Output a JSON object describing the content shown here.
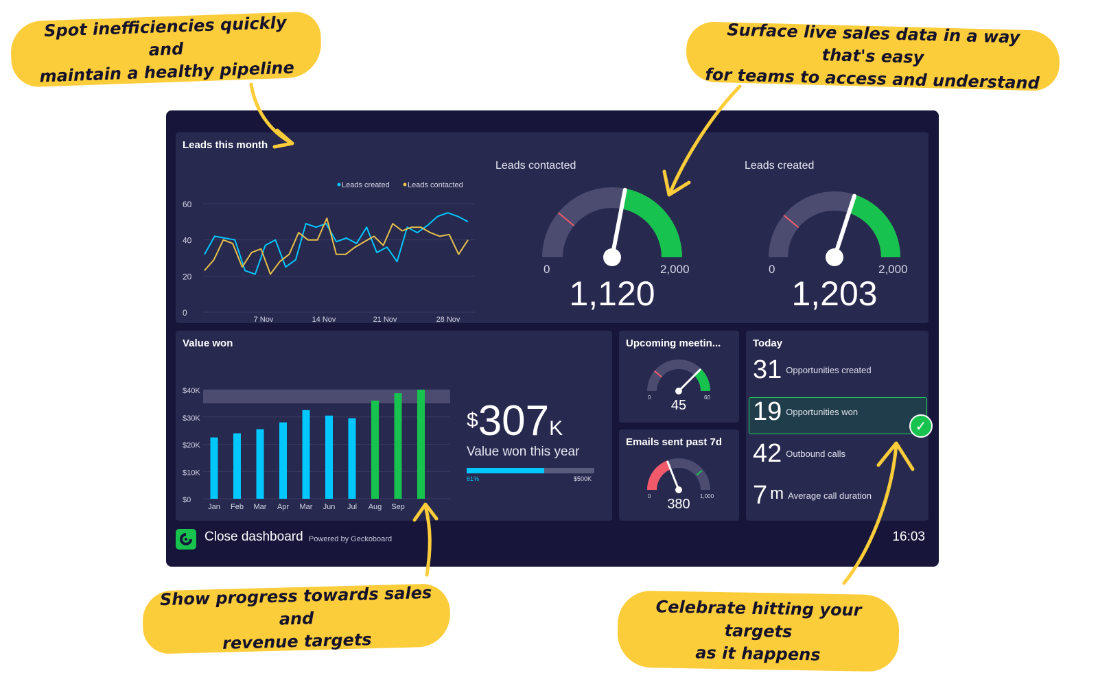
{
  "callouts": {
    "pipeline": [
      "Spot inefficiencies quickly and",
      "maintain a healthy pipeline"
    ],
    "live": [
      "Surface live sales data in a way that's easy",
      "for teams to access and understand"
    ],
    "progress": [
      "Show progress towards sales and",
      "revenue targets"
    ],
    "celebrate": [
      "Celebrate hitting your targets",
      "as it happens"
    ]
  },
  "colors": {
    "dashboard_bg": "#17153a",
    "panel_bg": "#28294f",
    "cyan": "#00c8ff",
    "yellow": "#e8c24a",
    "green": "#18c24f",
    "red": "#f25a6c",
    "callout": "#fccd3a"
  },
  "leads_panel": {
    "title": "Leads this month",
    "legend": [
      "Leads created",
      "Leads contacted"
    ]
  },
  "gauges": {
    "leads_contacted": {
      "title": "Leads contacted",
      "min": "0",
      "max": "2,000",
      "value": "1,120",
      "fraction": 0.56
    },
    "leads_created": {
      "title": "Leads created",
      "min": "0",
      "max": "2,000",
      "value": "1,203",
      "fraction": 0.6
    },
    "meetings": {
      "title": "Upcoming meetin...",
      "min": "0",
      "max": "60",
      "value": "45",
      "fraction": 0.75
    },
    "emails": {
      "title": "Emails sent past 7d",
      "min": "0",
      "max": "1,000",
      "value": "380",
      "fraction": 0.38
    }
  },
  "value_won": {
    "title": "Value won",
    "currency": "$",
    "amount": "307",
    "suffix": "K",
    "caption": "Value won this year",
    "progress_label": "61%",
    "progress_max": "$500K",
    "progress_fraction": 0.61
  },
  "today": {
    "title": "Today",
    "rows": [
      {
        "value": "31",
        "label": "Opportunities created"
      },
      {
        "value": "19",
        "label": "Opportunities won"
      },
      {
        "value": "42",
        "label": "Outbound calls"
      },
      {
        "value": "7",
        "unit": "m",
        "label": "Average call duration"
      }
    ]
  },
  "footer": {
    "title": "Close dashboard",
    "powered": "Powered by Geckoboard",
    "time": "16:03"
  },
  "chart_data": [
    {
      "type": "line",
      "title": "Leads this month",
      "x_ticks": [
        "7 Nov",
        "14 Nov",
        "21 Nov",
        "28 Nov"
      ],
      "y_ticks": [
        "0",
        "20",
        "40",
        "60"
      ],
      "ylim": [
        0,
        60
      ],
      "legend_position": "top-right",
      "series": [
        {
          "name": "Leads created",
          "color": "#00c8ff",
          "values": [
            32,
            42,
            41,
            40,
            23,
            21,
            37,
            40,
            25,
            29,
            49,
            47,
            49,
            39,
            41,
            38,
            47,
            33,
            36,
            28,
            47,
            44,
            48,
            53,
            55,
            53,
            50
          ]
        },
        {
          "name": "Leads contacted",
          "color": "#e8c24a",
          "values": [
            23,
            29,
            40,
            38,
            25,
            33,
            35,
            21,
            28,
            32,
            44,
            40,
            40,
            52,
            32,
            32,
            36,
            39,
            42,
            37,
            49,
            45,
            47,
            47,
            44,
            42,
            43,
            32,
            40
          ]
        }
      ]
    },
    {
      "type": "bar",
      "title": "Value won",
      "categories": [
        "Jan",
        "Feb",
        "Mar",
        "Apr",
        "Mar",
        "Jun",
        "Jul",
        "Aug",
        "Sep",
        ""
      ],
      "values": [
        22500,
        24000,
        25500,
        28000,
        32500,
        30500,
        29500,
        36000,
        38700,
        40000
      ],
      "bar_colors": [
        "#00c8ff",
        "#00c8ff",
        "#00c8ff",
        "#00c8ff",
        "#00c8ff",
        "#00c8ff",
        "#00c8ff",
        "#18c24f",
        "#18c24f",
        "#18c24f"
      ],
      "y_ticks": [
        "$0",
        "$10K",
        "$20K",
        "$30K",
        "$40K"
      ],
      "ylim": [
        0,
        40000
      ],
      "target_band": [
        35000,
        40000
      ]
    }
  ]
}
